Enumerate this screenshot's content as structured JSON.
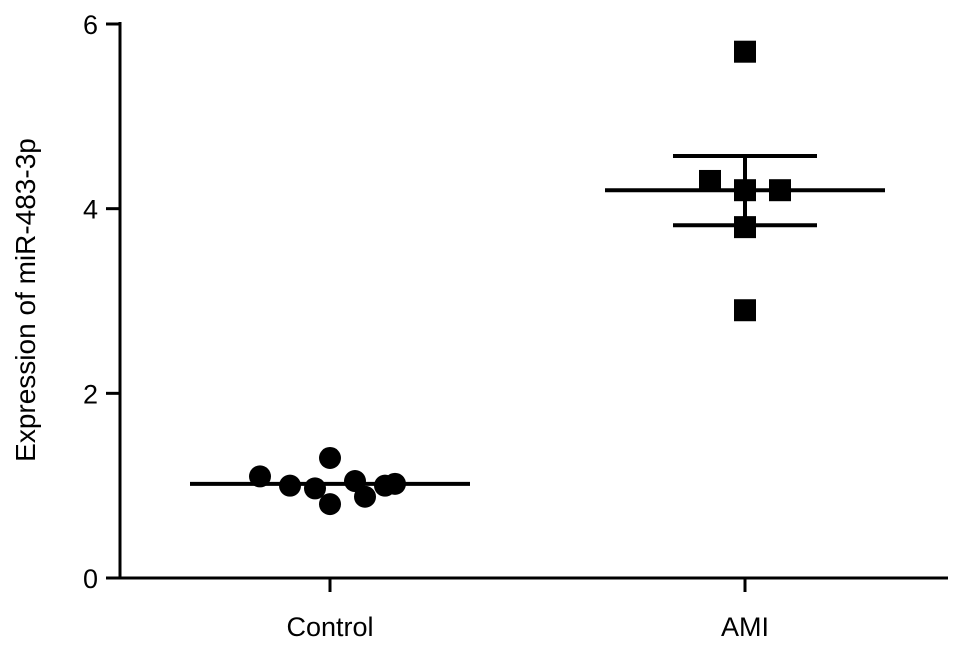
{
  "chart_data": {
    "type": "scatter",
    "title": "",
    "xlabel": "",
    "ylabel": "Expression of miR-483-3p",
    "ylim": [
      0,
      6
    ],
    "yticks": [
      0,
      2,
      4,
      6
    ],
    "grid": false,
    "legend": "none",
    "categories": [
      "Control",
      "AMI"
    ],
    "groups": [
      {
        "category": "Control",
        "marker": "circle",
        "points": [
          1.1,
          1.0,
          0.97,
          1.3,
          0.8,
          1.05,
          0.88,
          1.0,
          1.02
        ],
        "mean": 1.02,
        "sem_lower": null,
        "sem_upper": null
      },
      {
        "category": "AMI",
        "marker": "square",
        "points": [
          5.7,
          4.3,
          4.2,
          4.2,
          3.8,
          2.9
        ],
        "mean": 4.2,
        "sem_lower": 3.82,
        "sem_upper": 4.57
      }
    ],
    "color": "#000000"
  }
}
